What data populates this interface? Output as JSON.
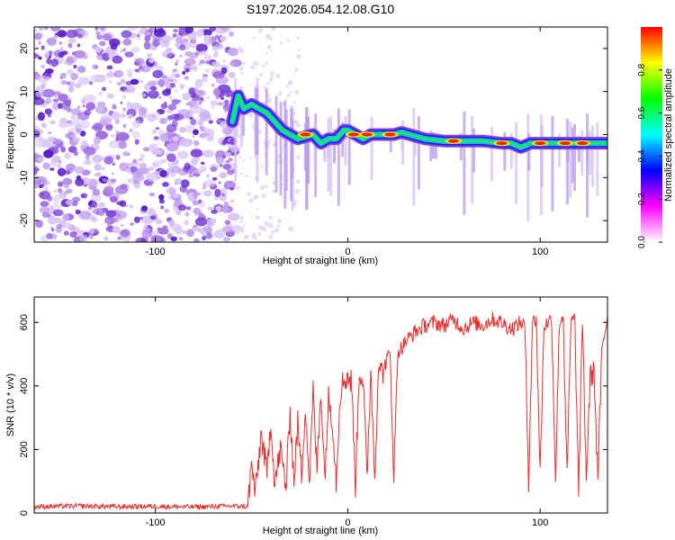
{
  "title": "S197.2026.054.12.08.G10",
  "chart_data": [
    {
      "type": "heatmap",
      "name": "spectrogram",
      "xlabel": "Height of straight line (km)",
      "ylabel": "Frequency (Hz)",
      "xlim": [
        -163,
        135
      ],
      "ylim": [
        -25,
        25
      ],
      "xticks": [
        -100,
        0,
        100
      ],
      "xtick_labels": [
        "-100",
        "0",
        "100"
      ],
      "yticks": [
        -20,
        -10,
        0,
        10,
        20
      ],
      "ytick_labels": [
        "-20",
        "-10",
        "0",
        "10",
        "20"
      ],
      "noise_region": [
        -163,
        -58
      ],
      "ridge": {
        "x": [
          -60,
          -57,
          -54,
          -50,
          -46,
          -42,
          -38,
          -34,
          -30,
          -26,
          -22,
          -18,
          -14,
          -10,
          -6,
          -2,
          0,
          4,
          8,
          12,
          16,
          20,
          24,
          28,
          32,
          40,
          50,
          60,
          70,
          80,
          85,
          90,
          95,
          100,
          105,
          110,
          115,
          120,
          125,
          130,
          135
        ],
        "y": [
          3,
          9,
          6,
          7,
          6,
          5,
          3,
          1,
          0,
          -1,
          -0.5,
          0,
          -2,
          -1,
          -1,
          1,
          1,
          0,
          -1,
          0,
          0,
          0,
          0,
          0.5,
          0,
          -1,
          -1.5,
          -1.5,
          -1.5,
          -2,
          -2,
          -3,
          -2,
          -2,
          -2,
          -2,
          -2,
          -2,
          -2,
          -2,
          -2
        ]
      },
      "hotspots": [
        {
          "x": -22,
          "y": 0
        },
        {
          "x": 3,
          "y": 0
        },
        {
          "x": 10,
          "y": 0
        },
        {
          "x": 22,
          "y": 0
        },
        {
          "x": 55,
          "y": -1.5
        },
        {
          "x": 80,
          "y": -2
        },
        {
          "x": 100,
          "y": -2
        },
        {
          "x": 113,
          "y": -2
        },
        {
          "x": 122,
          "y": -2
        }
      ],
      "colorbar": {
        "label": "Normalized spectral amplitude",
        "range": [
          0.0,
          1.0
        ],
        "ticks": [
          0.0,
          0.2,
          0.4,
          0.6,
          0.8
        ],
        "tick_labels": [
          "0.0",
          "0.2",
          "0.4",
          "0.6",
          "0.8"
        ],
        "colors": [
          "#ffffff",
          "#ff00ff",
          "#0000ff",
          "#00ffff",
          "#00ff00",
          "#ffff00",
          "#ff0000"
        ]
      }
    },
    {
      "type": "line",
      "name": "snr",
      "xlabel": "Height of straight line (km)",
      "ylabel": "SNR (10 * v/v)",
      "xlim": [
        -163,
        135
      ],
      "ylim": [
        0,
        680
      ],
      "xticks": [
        -100,
        0,
        100
      ],
      "xtick_labels": [
        "-100",
        "0",
        "100"
      ],
      "yticks": [
        0,
        200,
        400,
        600
      ],
      "ytick_labels": [
        "0",
        "200",
        "400",
        "600"
      ],
      "color": "#e83030",
      "series": [
        {
          "name": "SNR",
          "x": [
            -163,
            -140,
            -120,
            -100,
            -80,
            -60,
            -52,
            -50,
            -48,
            -45,
            -42,
            -40,
            -38,
            -35,
            -32,
            -30,
            -28,
            -26,
            -24,
            -22,
            -20,
            -18,
            -16,
            -14,
            -12,
            -10,
            -8,
            -6,
            -4,
            -2,
            0,
            2,
            4,
            6,
            8,
            10,
            12,
            14,
            16,
            18,
            20,
            22,
            24,
            26,
            28,
            30,
            35,
            40,
            45,
            50,
            55,
            60,
            65,
            70,
            75,
            80,
            85,
            90,
            92,
            94,
            96,
            98,
            100,
            102,
            104,
            106,
            108,
            110,
            112,
            114,
            116,
            118,
            120,
            122,
            124,
            126,
            128,
            130,
            132,
            135
          ],
          "values": [
            20,
            22,
            20,
            21,
            19,
            22,
            20,
            150,
            60,
            250,
            120,
            300,
            90,
            200,
            80,
            330,
            100,
            280,
            120,
            350,
            90,
            380,
            130,
            400,
            110,
            360,
            300,
            100,
            380,
            420,
            430,
            410,
            90,
            450,
            420,
            100,
            460,
            110,
            470,
            440,
            480,
            500,
            120,
            510,
            520,
            540,
            570,
            590,
            600,
            590,
            610,
            580,
            600,
            590,
            610,
            600,
            580,
            600,
            590,
            110,
            600,
            610,
            120,
            590,
            600,
            610,
            110,
            600,
            620,
            100,
            600,
            610,
            60,
            610,
            100,
            420,
            460,
            100,
            500,
            620
          ]
        }
      ]
    }
  ]
}
